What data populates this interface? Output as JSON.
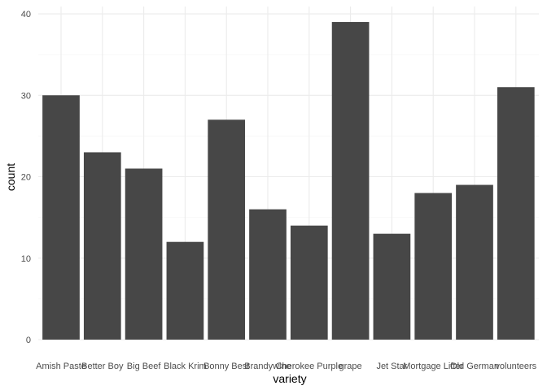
{
  "chart_data": {
    "type": "bar",
    "xlabel": "variety",
    "ylabel": "count",
    "categories": [
      "Amish Paste",
      "Better Boy",
      "Big Beef",
      "Black Krim",
      "Bonny Best",
      "Brandywine",
      "Cherokee Purple",
      "grape",
      "Jet Star",
      "Mortgage Lifter",
      "Old German",
      "volunteers"
    ],
    "values": [
      30,
      23,
      21,
      12,
      27,
      16,
      14,
      39,
      13,
      18,
      19,
      31
    ],
    "ylim": [
      0,
      40
    ],
    "yticks": [
      0,
      10,
      20,
      30,
      40
    ],
    "grid": true,
    "legend": "none",
    "colors": {
      "bar": "#474747",
      "background": "#ffffff",
      "grid": "#ebebeb"
    }
  }
}
